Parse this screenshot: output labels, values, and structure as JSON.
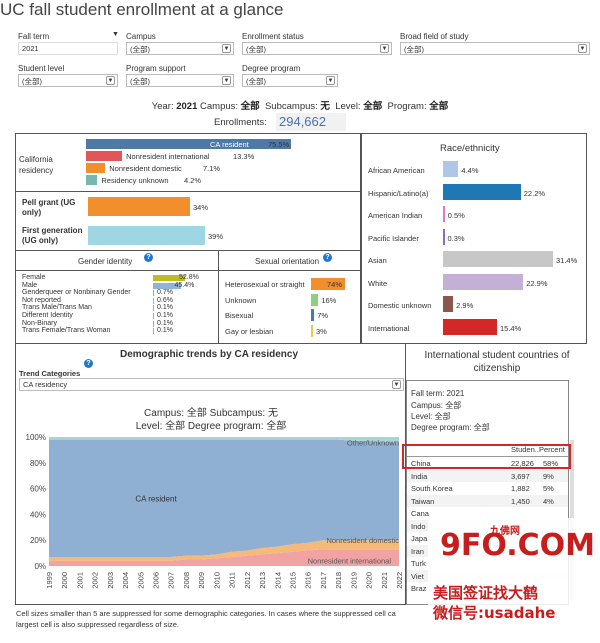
{
  "title": "UC fall student enrollment at a glance",
  "filters": {
    "fall_term": {
      "label": "Fall term",
      "value": "2021"
    },
    "campus": {
      "label": "Campus",
      "value": "(全部)"
    },
    "enrollment_status": {
      "label": "Enrollment status",
      "value": "(全部)"
    },
    "broad_field": {
      "label": "Broad field of study",
      "value": "(全部)"
    },
    "student_level": {
      "label": "Student level",
      "value": "(全部)"
    },
    "program_support": {
      "label": "Program support",
      "value": "(全部)"
    },
    "degree_program": {
      "label": "Degree program",
      "value": "(全部)"
    }
  },
  "summary": {
    "year_label": "Year:",
    "year": "2021",
    "campus_label": "Campus:",
    "campus": "全部",
    "subcampus_label": "Subcampus:",
    "subcampus": "无",
    "level_label": "Level:",
    "level": "全部",
    "program_label": "Program:",
    "program": "全部",
    "enrollments_label": "Enrollments:",
    "enrollments": "294,662"
  },
  "residency": {
    "label": "California residency",
    "items": [
      {
        "name": "CA resident",
        "value": "75.5%",
        "pct": 75.5,
        "color": "#4e79a7"
      },
      {
        "name": "Nonresident international",
        "value": "13.3%",
        "pct": 13.3,
        "color": "#e15759"
      },
      {
        "name": "Nonresident domestic",
        "value": "7.1%",
        "pct": 7.1,
        "color": "#f28e2b"
      },
      {
        "name": "Residency unknown",
        "value": "4.2%",
        "pct": 4.2,
        "color": "#76b7b2"
      }
    ]
  },
  "pell": {
    "label": "Pell grant (UG only)",
    "value": "34%",
    "pct": 34,
    "color": "#f28e2b"
  },
  "first_gen": {
    "label": "First generation (UG only)",
    "value": "39%",
    "pct": 39,
    "color": "#9ed6e3"
  },
  "race": {
    "title": "Race/ethnicity",
    "items": [
      {
        "name": "African American",
        "value": "4.4%",
        "pct": 4.4,
        "color": "#aec7e8"
      },
      {
        "name": "Hispanic/Latino(a)",
        "value": "22.2%",
        "pct": 22.2,
        "color": "#1f77b4"
      },
      {
        "name": "American Indian",
        "value": "0.5%",
        "pct": 0.5,
        "color": "#e377c2"
      },
      {
        "name": "Pacific Islander",
        "value": "0.3%",
        "pct": 0.3,
        "color": "#9467bd"
      },
      {
        "name": "Asian",
        "value": "31.4%",
        "pct": 31.4,
        "color": "#c7c7c7"
      },
      {
        "name": "White",
        "value": "22.9%",
        "pct": 22.9,
        "color": "#c5b0d5"
      },
      {
        "name": "Domestic unknown",
        "value": "2.9%",
        "pct": 2.9,
        "color": "#8c564b"
      },
      {
        "name": "International",
        "value": "15.4%",
        "pct": 15.4,
        "color": "#d62728"
      }
    ]
  },
  "gender": {
    "title": "Gender identity",
    "items": [
      {
        "name": "Female",
        "value": "52.8%",
        "pct": 52.8,
        "color": "#bcbd22"
      },
      {
        "name": "Male",
        "value": "45.4%",
        "pct": 45.4,
        "color": "#8fb3d9"
      },
      {
        "name": "Genderqueer or Nonbinary Gender",
        "value": "0.7%",
        "pct": 0.7,
        "color": "#bcbd22"
      },
      {
        "name": "Not reported",
        "value": "0.6%",
        "pct": 0.6,
        "color": "#bcbd22"
      },
      {
        "name": "Trans Male/Trans Man",
        "value": "0.1%",
        "pct": 0.1,
        "color": "#bcbd22"
      },
      {
        "name": "Different Identity",
        "value": "0.1%",
        "pct": 0.1,
        "color": "#bcbd22"
      },
      {
        "name": "Non-Binary",
        "value": "0.1%",
        "pct": 0.1,
        "color": "#bcbd22"
      },
      {
        "name": "Trans Female/Trans Woman",
        "value": "0.1%",
        "pct": 0.1,
        "color": "#bcbd22"
      }
    ]
  },
  "orientation": {
    "title": "Sexual orientation",
    "items": [
      {
        "name": "Heterosexual or straight",
        "value": "74%",
        "pct": 74,
        "color": "#f28e2b"
      },
      {
        "name": "Unknown",
        "value": "16%",
        "pct": 16,
        "color": "#8cd17d"
      },
      {
        "name": "Bisexual",
        "value": "7%",
        "pct": 7,
        "color": "#4e79a7"
      },
      {
        "name": "Gay or lesbian",
        "value": "3%",
        "pct": 3,
        "color": "#edc948"
      }
    ]
  },
  "trends": {
    "title": "Demographic trends by CA residency",
    "category_label": "Trend Categories",
    "category_value": "CA residency",
    "subtitle_line1": "Campus: 全部    Subcampus: 无",
    "subtitle_line2": "Level: 全部    Degree program: 全部",
    "series_labels": {
      "other": "Other/Unknown",
      "ca": "CA resident",
      "domestic": "Nonresident domestic",
      "intl": "Nonresident international"
    },
    "colors": {
      "ca": "#8fb0d3",
      "other": "#a8d5d1",
      "domestic": "#f5b97a",
      "intl": "#f1a3a3"
    }
  },
  "chart_data": {
    "type": "area",
    "x": [
      1999,
      2000,
      2001,
      2002,
      2003,
      2004,
      2005,
      2006,
      2007,
      2008,
      2009,
      2010,
      2011,
      2012,
      2013,
      2014,
      2015,
      2016,
      2017,
      2018,
      2019,
      2020,
      2021,
      2022
    ],
    "series": [
      {
        "name": "Nonresident international",
        "values": [
          4,
          4,
          4,
          4,
          4,
          4,
          4,
          4,
          4,
          5,
          5,
          6,
          7,
          8,
          9,
          10,
          11,
          12,
          13,
          13,
          13,
          13,
          13,
          13
        ]
      },
      {
        "name": "Nonresident domestic",
        "values": [
          3,
          3,
          3,
          3,
          3,
          3,
          3,
          3,
          3,
          3,
          3,
          3,
          4,
          4,
          5,
          5,
          6,
          6,
          7,
          7,
          7,
          7,
          7,
          7
        ]
      },
      {
        "name": "CA resident",
        "values": [
          91,
          91,
          91,
          91,
          91,
          91,
          91,
          91,
          91,
          90,
          90,
          89,
          87,
          86,
          84,
          83,
          81,
          80,
          78,
          78,
          77,
          77,
          76,
          76
        ]
      },
      {
        "name": "Other/Unknown",
        "values": [
          2,
          2,
          2,
          2,
          2,
          2,
          2,
          2,
          2,
          2,
          2,
          2,
          2,
          2,
          2,
          2,
          2,
          2,
          2,
          2,
          3,
          3,
          4,
          4
        ]
      }
    ],
    "yticks": [
      "0%",
      "20%",
      "40%",
      "60%",
      "80%",
      "100%"
    ],
    "ylim": [
      0,
      100
    ]
  },
  "intl": {
    "title": "International student countries of citizenship",
    "fall_term_line": "Fall term: 2021",
    "campus_line": "Campus: 全部",
    "level_line": "Level: 全部",
    "degree_line": "Degree program: 全部",
    "headers": [
      "",
      "Studen..",
      "Percent"
    ],
    "rows": [
      {
        "country": "China",
        "students": "22,826",
        "percent": "58%"
      },
      {
        "country": "India",
        "students": "3,697",
        "percent": "9%"
      },
      {
        "country": "South Korea",
        "students": "1,882",
        "percent": "5%"
      },
      {
        "country": "Taiwan",
        "students": "1,450",
        "percent": "4%"
      },
      {
        "country": "Cana",
        "students": "",
        "percent": ""
      },
      {
        "country": "Indo",
        "students": "",
        "percent": ""
      },
      {
        "country": "Japa",
        "students": "",
        "percent": ""
      },
      {
        "country": "Iran",
        "students": "",
        "percent": ""
      },
      {
        "country": "Turk",
        "students": "",
        "percent": ""
      },
      {
        "country": "Viet",
        "students": "",
        "percent": ""
      },
      {
        "country": "Braz",
        "students": "",
        "percent": ""
      }
    ]
  },
  "footnote": "Cell sizes smaller than 5 are suppressed for some demographic categories. In cases where the suppressed cell can be derived, the next largest cell is also suppressed regardless of size.",
  "footnote_line1": "Cell sizes smaller than 5 are suppressed for some demographic categories. In cases where the suppressed cell ca",
  "footnote_line2": "largest cell is also suppressed regardless of size.",
  "watermark": {
    "top": "九佛网",
    "main": "9FO.COM",
    "line1": "美国签证找大鹤",
    "line2": "微信号:usadahe"
  }
}
